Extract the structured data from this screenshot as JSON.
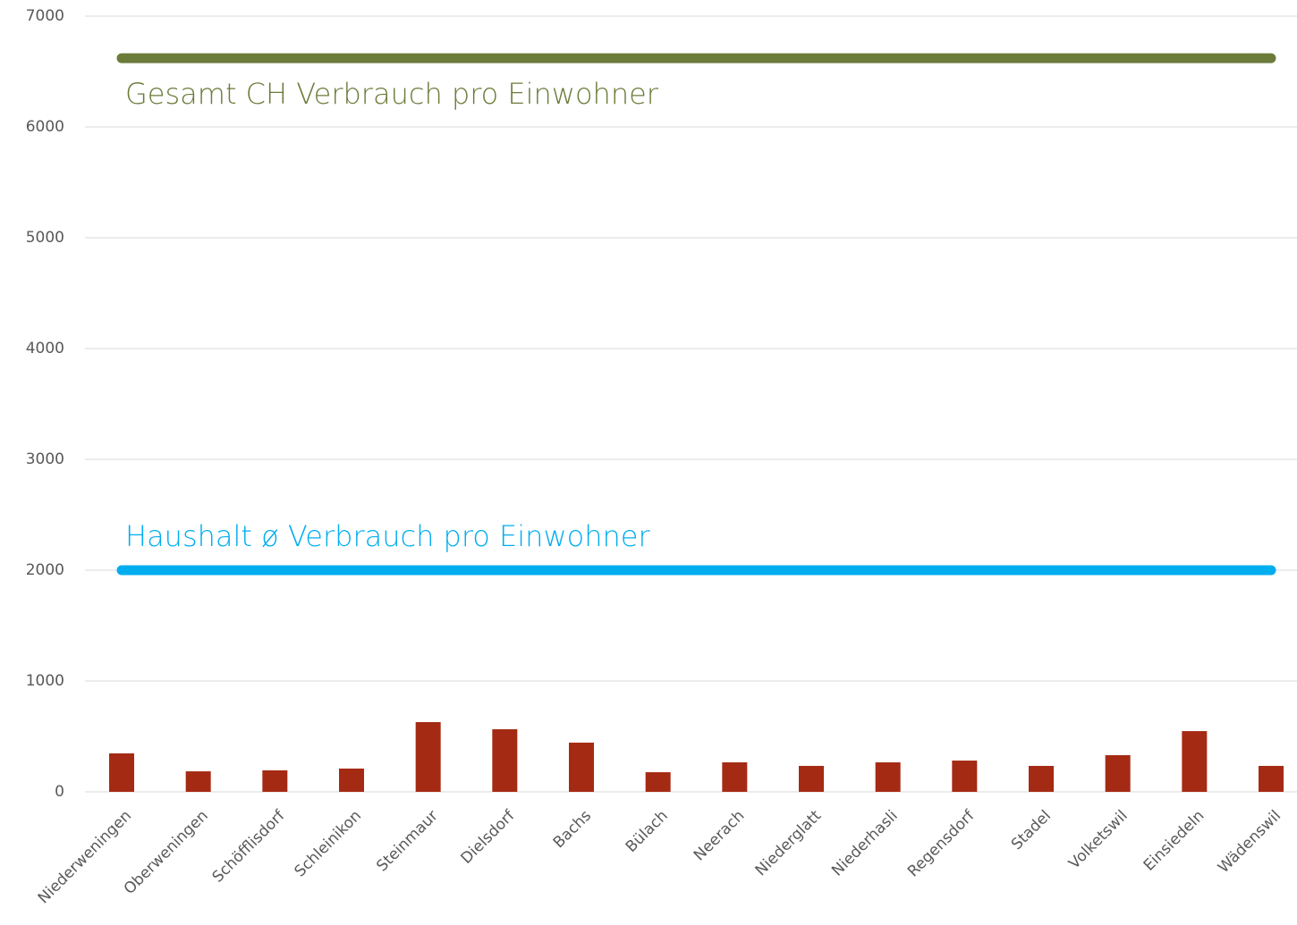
{
  "chart_data": {
    "type": "bar",
    "categories": [
      "Niederweningen",
      "Oberweningen",
      "Schöfflisdorf",
      "Schleinikon",
      "Steinmaur",
      "Dielsdorf",
      "Bachs",
      "Bülach",
      "Neerach",
      "Niederglatt",
      "Niederhasli",
      "Regensdorf",
      "Stadel",
      "Volketswil",
      "Einsiedeln",
      "Wädenswil"
    ],
    "values": [
      347,
      185,
      194,
      210,
      629,
      565,
      444,
      177,
      266,
      234,
      266,
      282,
      234,
      331,
      548,
      234
    ],
    "color": "#a52a14",
    "ylim": [
      0,
      7000
    ],
    "yticks": [
      0,
      1000,
      2000,
      3000,
      4000,
      5000,
      6000,
      7000
    ],
    "grid": true,
    "reference_lines": [
      {
        "label": "Gesamt CH Verbrauch pro Einwohner",
        "value": 6620,
        "color": "#6b7b3a"
      },
      {
        "label": "Haushalt ø Verbrauch pro Einwohner",
        "value": 2000,
        "color": "#00adef"
      }
    ]
  }
}
